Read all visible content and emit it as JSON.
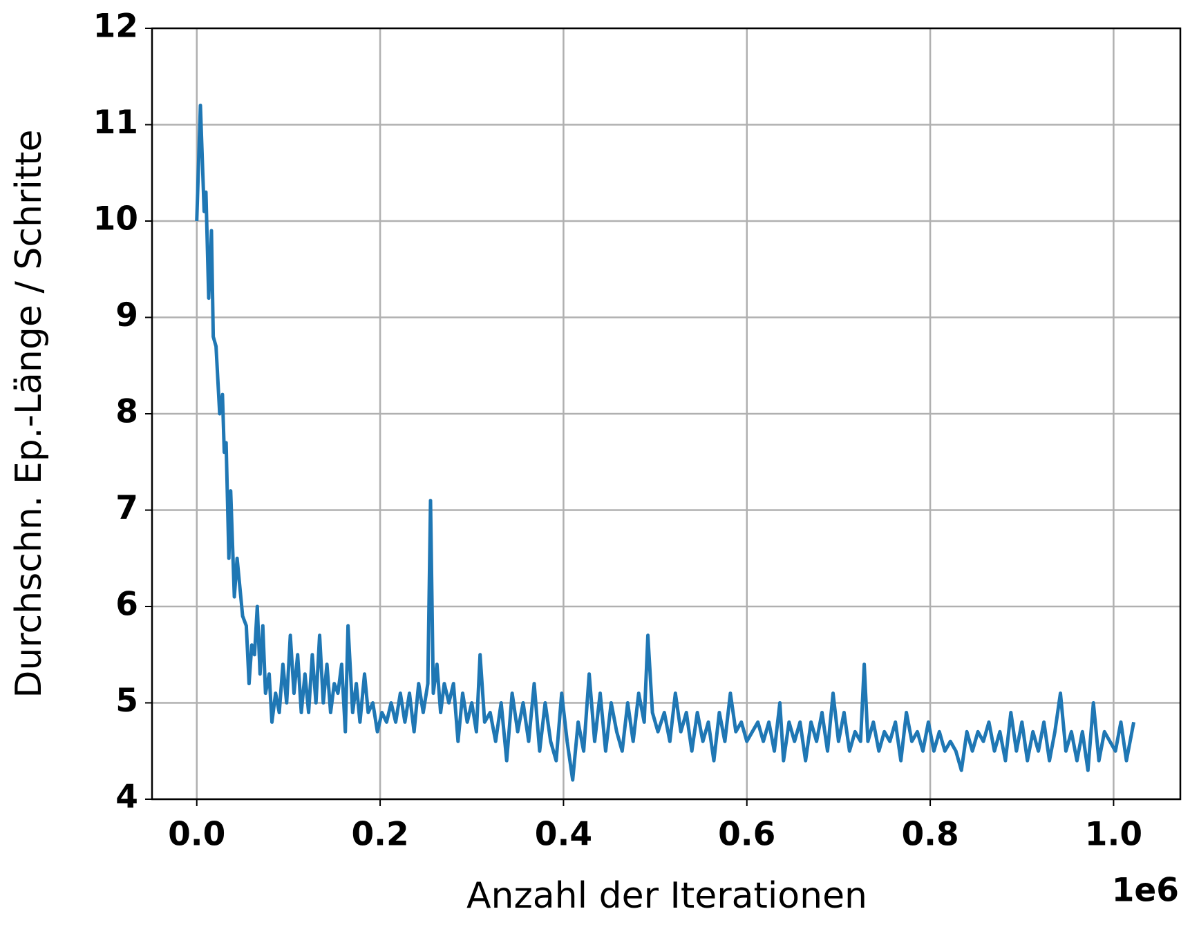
{
  "chart_data": {
    "type": "line",
    "xlabel": "Anzahl der Iterationen",
    "ylabel": "Durchschn. Ep.-Länge / Schritte",
    "x_offset_label": "1e6",
    "xlim": [
      -0.0488,
      1.0728
    ],
    "ylim": [
      4,
      12
    ],
    "xticks": [
      {
        "value": 0,
        "label": "0.0"
      },
      {
        "value": 0.2,
        "label": "0.2"
      },
      {
        "value": 0.4,
        "label": "0.4"
      },
      {
        "value": 0.6,
        "label": "0.6"
      },
      {
        "value": 0.8,
        "label": "0.8"
      },
      {
        "value": 1,
        "label": "1.0"
      }
    ],
    "yticks": [
      4,
      5,
      6,
      7,
      8,
      9,
      10,
      11,
      12
    ],
    "grid": true,
    "x": [
      0.0,
      0.004,
      0.008,
      0.01,
      0.013,
      0.016,
      0.018,
      0.021,
      0.025,
      0.028,
      0.03,
      0.032,
      0.035,
      0.037,
      0.041,
      0.044,
      0.047,
      0.05,
      0.054,
      0.057,
      0.06,
      0.063,
      0.066,
      0.069,
      0.072,
      0.075,
      0.079,
      0.082,
      0.086,
      0.09,
      0.094,
      0.098,
      0.102,
      0.106,
      0.11,
      0.114,
      0.118,
      0.122,
      0.126,
      0.13,
      0.134,
      0.138,
      0.142,
      0.146,
      0.15,
      0.154,
      0.158,
      0.162,
      0.165,
      0.17,
      0.174,
      0.178,
      0.183,
      0.187,
      0.192,
      0.197,
      0.202,
      0.207,
      0.212,
      0.217,
      0.222,
      0.227,
      0.232,
      0.237,
      0.242,
      0.247,
      0.252,
      0.255,
      0.258,
      0.262,
      0.266,
      0.27,
      0.275,
      0.28,
      0.285,
      0.29,
      0.295,
      0.3,
      0.305,
      0.309,
      0.314,
      0.32,
      0.326,
      0.332,
      0.338,
      0.344,
      0.35,
      0.356,
      0.362,
      0.368,
      0.374,
      0.38,
      0.386,
      0.392,
      0.398,
      0.404,
      0.41,
      0.416,
      0.422,
      0.428,
      0.434,
      0.44,
      0.446,
      0.452,
      0.458,
      0.464,
      0.47,
      0.476,
      0.482,
      0.488,
      0.492,
      0.497,
      0.503,
      0.51,
      0.516,
      0.522,
      0.528,
      0.534,
      0.54,
      0.546,
      0.552,
      0.558,
      0.564,
      0.57,
      0.576,
      0.582,
      0.588,
      0.594,
      0.6,
      0.606,
      0.612,
      0.618,
      0.624,
      0.63,
      0.636,
      0.64,
      0.646,
      0.652,
      0.658,
      0.664,
      0.67,
      0.676,
      0.682,
      0.688,
      0.694,
      0.7,
      0.706,
      0.712,
      0.718,
      0.724,
      0.728,
      0.732,
      0.738,
      0.744,
      0.75,
      0.756,
      0.762,
      0.768,
      0.774,
      0.78,
      0.786,
      0.792,
      0.798,
      0.804,
      0.81,
      0.816,
      0.822,
      0.828,
      0.834,
      0.84,
      0.846,
      0.852,
      0.858,
      0.864,
      0.87,
      0.876,
      0.882,
      0.888,
      0.894,
      0.9,
      0.906,
      0.912,
      0.918,
      0.924,
      0.93,
      0.936,
      0.942,
      0.948,
      0.954,
      0.96,
      0.966,
      0.972,
      0.978,
      0.984,
      0.99,
      0.996,
      1.002,
      1.008,
      1.014,
      1.022
    ],
    "series": [
      {
        "color": "#1f77b4",
        "values": [
          10.0,
          11.2,
          10.1,
          10.3,
          9.2,
          9.9,
          8.8,
          8.7,
          8.0,
          8.2,
          7.6,
          7.7,
          6.5,
          7.2,
          6.1,
          6.5,
          6.2,
          5.9,
          5.8,
          5.2,
          5.6,
          5.5,
          6.0,
          5.3,
          5.8,
          5.1,
          5.3,
          4.8,
          5.1,
          4.9,
          5.4,
          5.0,
          5.7,
          5.1,
          5.5,
          4.9,
          5.3,
          4.9,
          5.5,
          5.0,
          5.7,
          5.0,
          5.4,
          4.9,
          5.2,
          5.1,
          5.4,
          4.7,
          5.8,
          4.9,
          5.2,
          4.8,
          5.3,
          4.9,
          5.0,
          4.7,
          4.9,
          4.8,
          5.0,
          4.8,
          5.1,
          4.8,
          5.1,
          4.7,
          5.2,
          4.9,
          5.2,
          7.1,
          5.1,
          5.4,
          4.9,
          5.2,
          5.0,
          5.2,
          4.6,
          5.1,
          4.8,
          5.0,
          4.7,
          5.5,
          4.8,
          4.9,
          4.6,
          5.0,
          4.4,
          5.1,
          4.7,
          5.0,
          4.6,
          5.2,
          4.5,
          5.0,
          4.6,
          4.4,
          5.1,
          4.6,
          4.2,
          4.8,
          4.5,
          5.3,
          4.6,
          5.1,
          4.5,
          5.0,
          4.7,
          4.5,
          5.0,
          4.6,
          5.1,
          4.8,
          5.7,
          4.9,
          4.7,
          4.9,
          4.6,
          5.1,
          4.7,
          4.9,
          4.5,
          4.9,
          4.6,
          4.8,
          4.4,
          4.9,
          4.6,
          5.1,
          4.7,
          4.8,
          4.6,
          4.7,
          4.8,
          4.6,
          4.8,
          4.5,
          5.0,
          4.4,
          4.8,
          4.6,
          4.8,
          4.4,
          4.8,
          4.6,
          4.9,
          4.5,
          5.1,
          4.6,
          4.9,
          4.5,
          4.7,
          4.6,
          5.4,
          4.6,
          4.8,
          4.5,
          4.7,
          4.6,
          4.8,
          4.4,
          4.9,
          4.6,
          4.7,
          4.5,
          4.8,
          4.5,
          4.7,
          4.5,
          4.6,
          4.5,
          4.3,
          4.7,
          4.5,
          4.7,
          4.6,
          4.8,
          4.5,
          4.7,
          4.4,
          4.9,
          4.5,
          4.8,
          4.4,
          4.7,
          4.5,
          4.8,
          4.4,
          4.7,
          5.1,
          4.5,
          4.7,
          4.4,
          4.7,
          4.3,
          5.0,
          4.4,
          4.7,
          4.6,
          4.5,
          4.8,
          4.4,
          4.8
        ]
      }
    ]
  }
}
